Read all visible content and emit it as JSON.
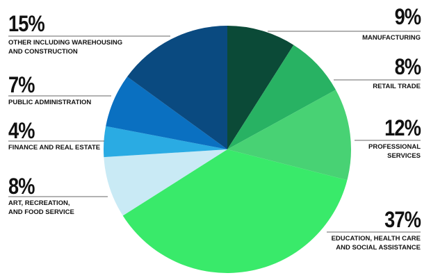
{
  "chart_data": {
    "type": "pie",
    "categories": [
      "MANUFACTURING",
      "RETAIL TRADE",
      "PROFESSIONAL SERVICES",
      "EDUCATION, HEALTH CARE AND SOCIAL ASSISTANCE",
      "ART, RECREATION, AND FOOD SERVICE",
      "FINANCE AND REAL ESTATE",
      "PUBLIC ADMINISTRATION",
      "OTHER INCLUDING WAREHOUSING AND CONSTRUCTION"
    ],
    "values": [
      9,
      8,
      12,
      37,
      8,
      4,
      7,
      15
    ],
    "value_labels": [
      "9%",
      "8%",
      "12%",
      "37%",
      "8%",
      "4%",
      "7%",
      "15%"
    ],
    "colors": [
      "#0b4a37",
      "#28b263",
      "#48d274",
      "#39ea6a",
      "#c9eaf5",
      "#2aabe3",
      "#0a70c1",
      "#0a4a80"
    ]
  }
}
